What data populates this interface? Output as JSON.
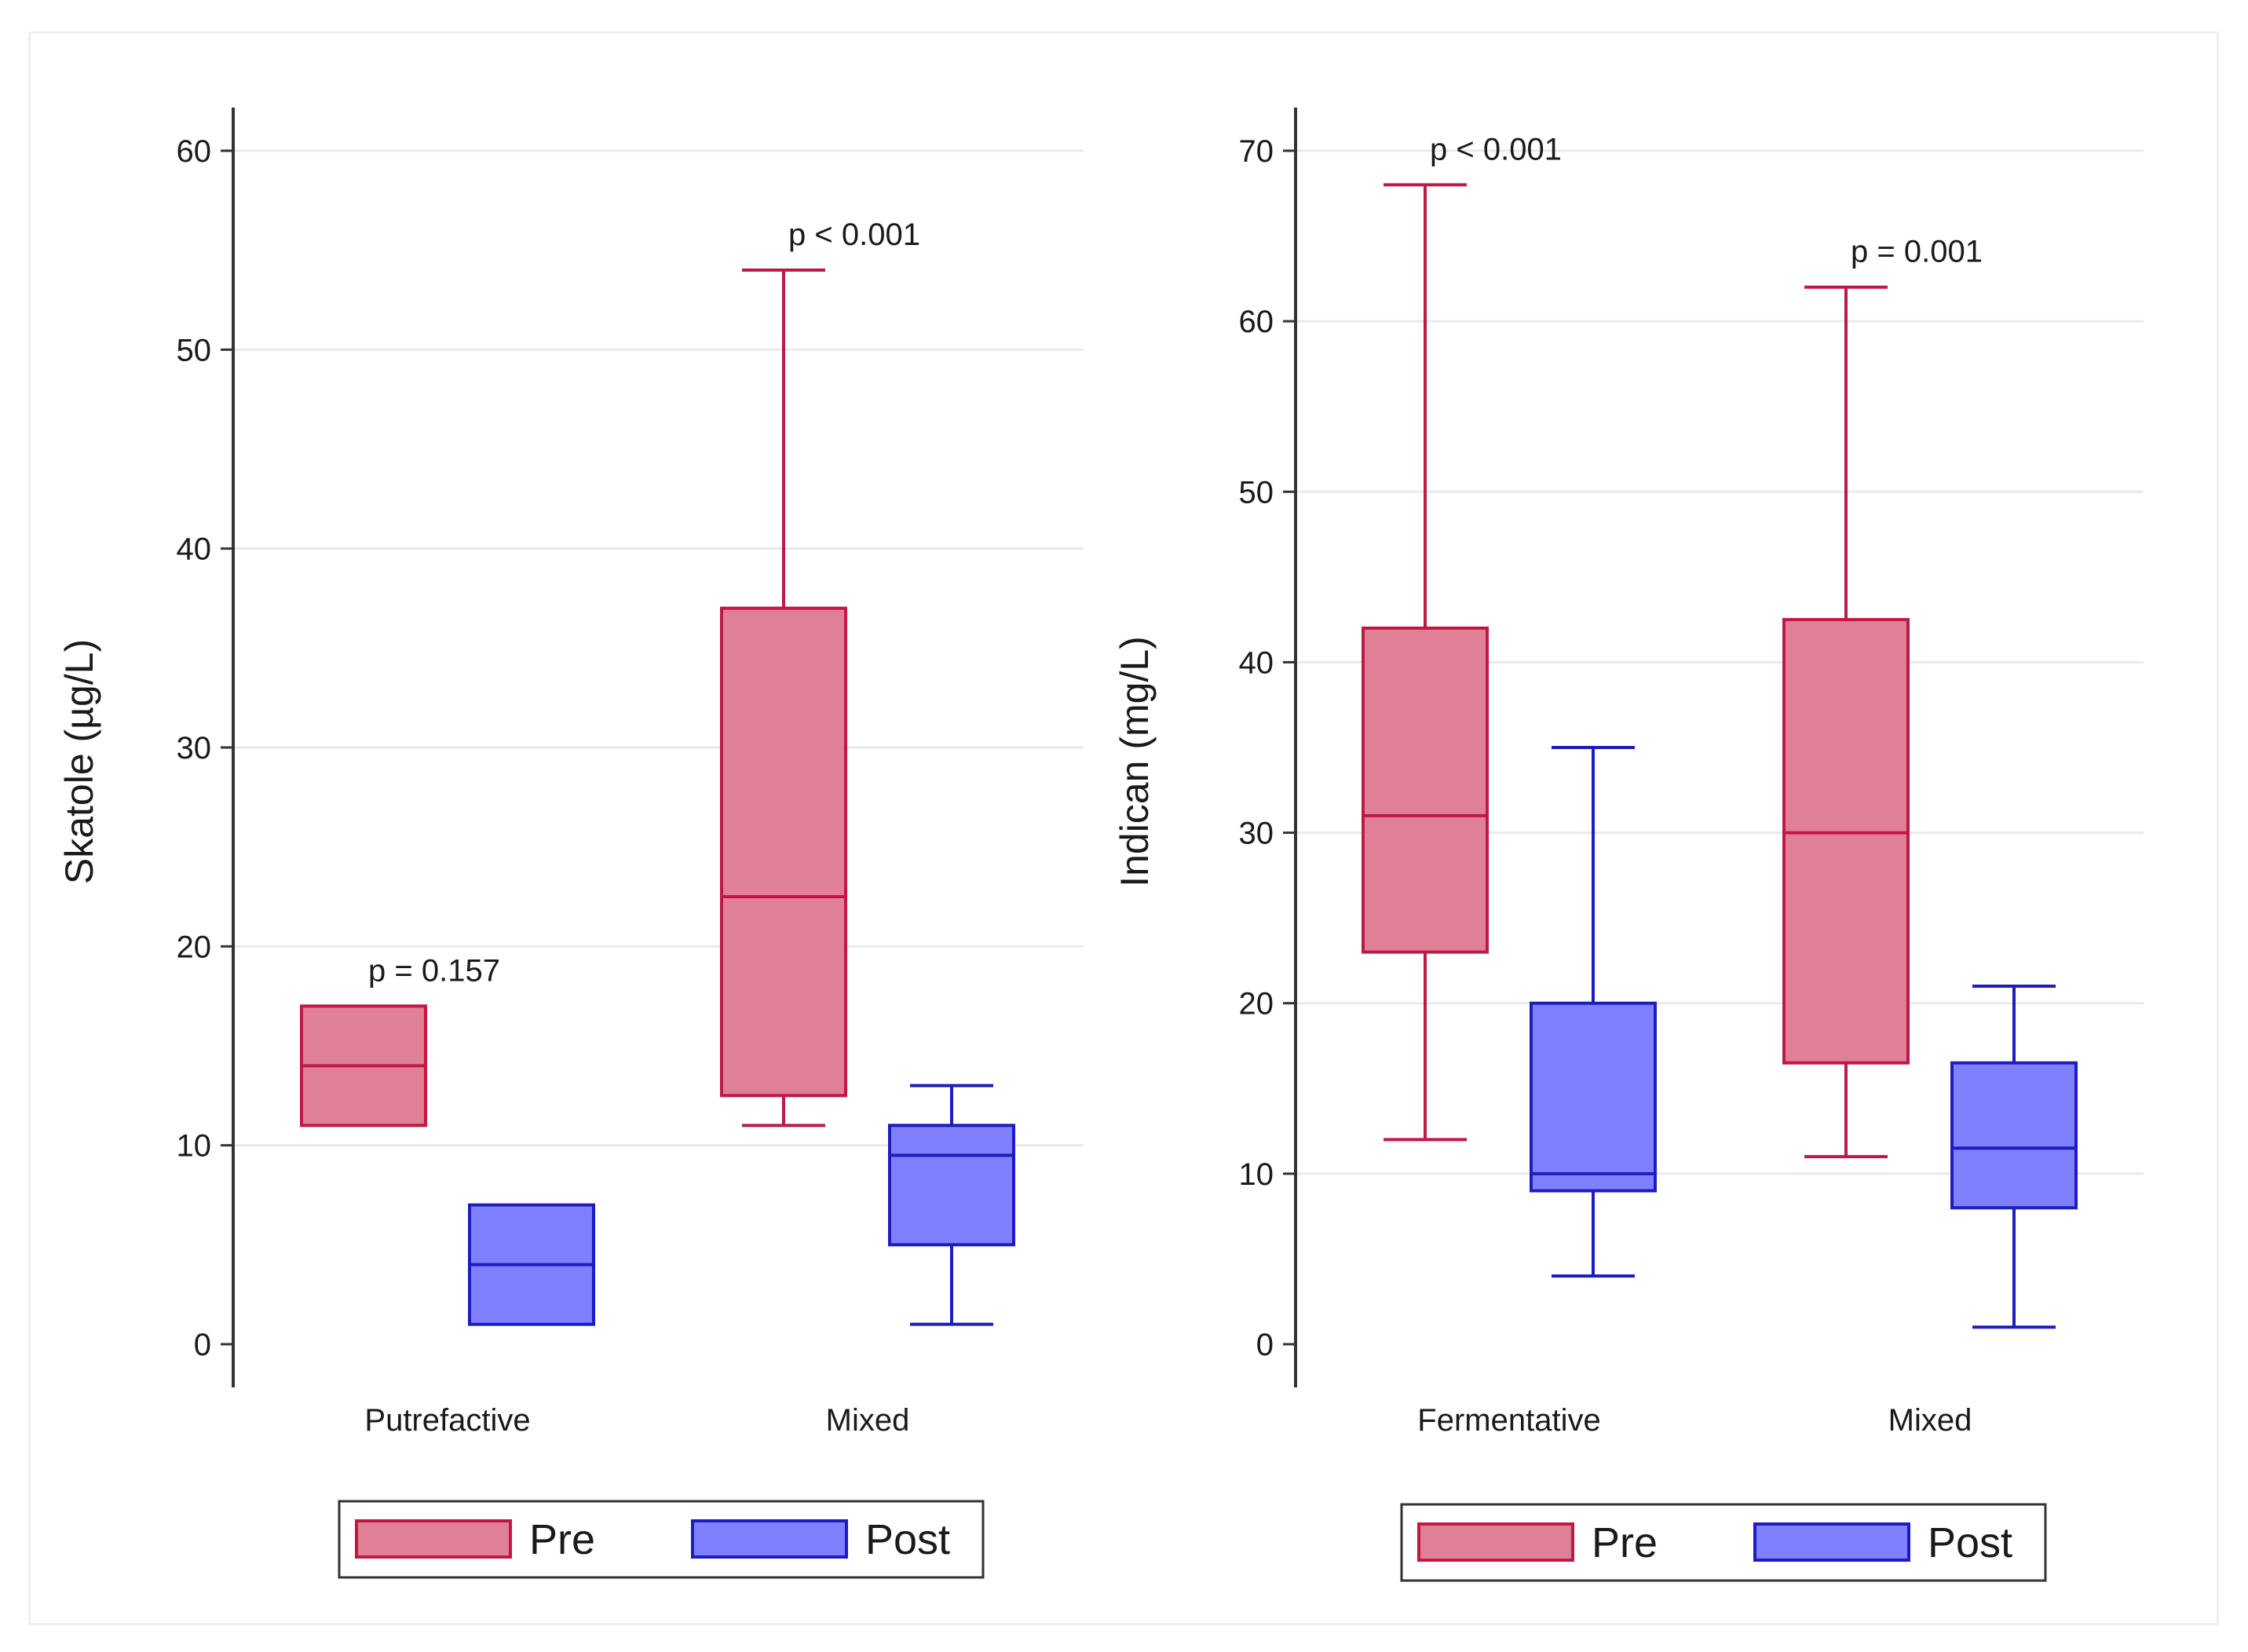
{
  "chart_data": [
    {
      "type": "box",
      "ylabel": "Skatole (µg/L)",
      "ylim": [
        0,
        60
      ],
      "yticks": [
        0,
        10,
        20,
        30,
        40,
        50,
        60
      ],
      "categories": [
        "Putrefactive",
        "Mixed"
      ],
      "series": [
        {
          "name": "Pre",
          "color": "#e08096",
          "stroke": "#c01845",
          "boxes": [
            {
              "category": "Putrefactive",
              "whisker_low": 11,
              "q1": 11,
              "median": 14,
              "q3": 17,
              "whisker_high": 17
            },
            {
              "category": "Mixed",
              "whisker_low": 11,
              "q1": 12.5,
              "median": 22.5,
              "q3": 37,
              "whisker_high": 54
            }
          ]
        },
        {
          "name": "Post",
          "color": "#8080ff",
          "stroke": "#1c1cc0",
          "boxes": [
            {
              "category": "Putrefactive",
              "whisker_low": 1,
              "q1": 1,
              "median": 4,
              "q3": 7,
              "whisker_high": 7
            },
            {
              "category": "Mixed",
              "whisker_low": 1,
              "q1": 5,
              "median": 9.5,
              "q3": 11,
              "whisker_high": 13
            }
          ]
        }
      ],
      "annotations": [
        {
          "category": "Putrefactive",
          "text": "p = 0.157"
        },
        {
          "category": "Mixed",
          "text": "p < 0.001"
        }
      ],
      "legend": [
        "Pre",
        "Post"
      ]
    },
    {
      "type": "box",
      "ylabel": "Indican (mg/L)",
      "ylim": [
        0,
        70
      ],
      "yticks": [
        0,
        10,
        20,
        30,
        40,
        50,
        60,
        70
      ],
      "categories": [
        "Fermentative",
        "Mixed"
      ],
      "series": [
        {
          "name": "Pre",
          "color": "#e08096",
          "stroke": "#c01845",
          "boxes": [
            {
              "category": "Fermentative",
              "whisker_low": 12,
              "q1": 23,
              "median": 31,
              "q3": 42,
              "whisker_high": 68
            },
            {
              "category": "Mixed",
              "whisker_low": 11,
              "q1": 16.5,
              "median": 30,
              "q3": 42.5,
              "whisker_high": 62
            }
          ]
        },
        {
          "name": "Post",
          "color": "#8080ff",
          "stroke": "#1c1cc0",
          "boxes": [
            {
              "category": "Fermentative",
              "whisker_low": 4,
              "q1": 9,
              "median": 10,
              "q3": 20,
              "whisker_high": 35
            },
            {
              "category": "Mixed",
              "whisker_low": 1,
              "q1": 8,
              "median": 11.5,
              "q3": 16.5,
              "whisker_high": 21
            }
          ]
        }
      ],
      "annotations": [
        {
          "category": "Fermentative",
          "text": "p < 0.001"
        },
        {
          "category": "Mixed",
          "text": "p = 0.001"
        }
      ],
      "legend": [
        "Pre",
        "Post"
      ]
    }
  ]
}
